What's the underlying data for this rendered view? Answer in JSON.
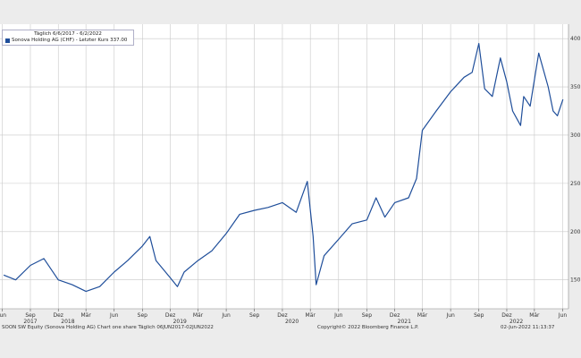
{
  "legend": {
    "title": "Täglich 6/6/2017 - 6/2/2022",
    "entry": "Sonova Holding AG (CHF) - Letzter Kurs 337.00"
  },
  "footer": {
    "left": "SOON SW Equity (Sonova Holding AG) Chart one share  Täglich 06JUN2017-02JUN2022",
    "center": "Copyright© 2022 Bloomberg Finance L.P.",
    "right": "02-Jun-2022 11:13:37"
  },
  "colors": {
    "line": "#1f4e9a",
    "grid": "#c8c8c8",
    "background": "#ffffff"
  },
  "chart_data": {
    "type": "line",
    "series": [
      {
        "name": "Sonova Holding AG (CHF) - Letzter Kurs 337.00",
        "x": [
          "2017-06-06",
          "2017-07-15",
          "2017-09-01",
          "2017-10-15",
          "2017-12-01",
          "2018-01-15",
          "2018-03-01",
          "2018-04-15",
          "2018-06-01",
          "2018-07-15",
          "2018-09-01",
          "2018-09-25",
          "2018-10-15",
          "2018-12-01",
          "2018-12-24",
          "2019-01-15",
          "2019-03-01",
          "2019-04-15",
          "2019-06-01",
          "2019-07-15",
          "2019-09-01",
          "2019-10-15",
          "2019-12-01",
          "2020-01-15",
          "2020-02-20",
          "2020-03-10",
          "2020-03-20",
          "2020-04-15",
          "2020-06-01",
          "2020-07-15",
          "2020-09-01",
          "2020-10-01",
          "2020-10-30",
          "2020-12-01",
          "2021-01-15",
          "2021-02-10",
          "2021-03-01",
          "2021-04-15",
          "2021-06-01",
          "2021-07-15",
          "2021-08-10",
          "2021-09-01",
          "2021-09-20",
          "2021-10-15",
          "2021-11-10",
          "2021-12-01",
          "2021-12-20",
          "2022-01-15",
          "2022-01-25",
          "2022-02-15",
          "2022-03-15",
          "2022-04-15",
          "2022-05-01",
          "2022-05-15",
          "2022-06-02"
        ],
        "y": [
          155,
          150,
          165,
          172,
          150,
          145,
          138,
          143,
          158,
          170,
          185,
          195,
          170,
          152,
          143,
          158,
          170,
          180,
          198,
          218,
          222,
          225,
          230,
          220,
          252,
          195,
          145,
          175,
          192,
          208,
          212,
          235,
          215,
          230,
          235,
          255,
          305,
          325,
          345,
          360,
          365,
          395,
          348,
          340,
          380,
          355,
          325,
          310,
          340,
          330,
          385,
          350,
          325,
          320,
          337
        ]
      }
    ],
    "x_tick_labels": [
      {
        "x": "2017-06-01",
        "label": "Jun"
      },
      {
        "x": "2017-09-01",
        "label": "Sep"
      },
      {
        "x": "2017-12-01",
        "label": "Dez"
      },
      {
        "x": "2018-03-01",
        "label": "Mär"
      },
      {
        "x": "2018-06-01",
        "label": "Jun"
      },
      {
        "x": "2018-09-01",
        "label": "Sep"
      },
      {
        "x": "2018-12-01",
        "label": "Dez"
      },
      {
        "x": "2019-03-01",
        "label": "Mär"
      },
      {
        "x": "2019-06-01",
        "label": "Jun"
      },
      {
        "x": "2019-09-01",
        "label": "Sep"
      },
      {
        "x": "2019-12-01",
        "label": "Dez"
      },
      {
        "x": "2020-03-01",
        "label": "Mär"
      },
      {
        "x": "2020-06-01",
        "label": "Jun"
      },
      {
        "x": "2020-09-01",
        "label": "Sep"
      },
      {
        "x": "2020-12-01",
        "label": "Dez"
      },
      {
        "x": "2021-03-01",
        "label": "Mär"
      },
      {
        "x": "2021-06-01",
        "label": "Jun"
      },
      {
        "x": "2021-09-01",
        "label": "Sep"
      },
      {
        "x": "2021-12-01",
        "label": "Dez"
      },
      {
        "x": "2022-03-01",
        "label": "Mär"
      },
      {
        "x": "2022-06-01",
        "label": "Jun"
      }
    ],
    "year_labels": [
      {
        "x": "2017-09-01",
        "label": "2017"
      },
      {
        "x": "2018-01-01",
        "label": "2018"
      },
      {
        "x": "2019-01-01",
        "label": "2019"
      },
      {
        "x": "2020-01-01",
        "label": "2020"
      },
      {
        "x": "2021-01-01",
        "label": "2021"
      },
      {
        "x": "2022-01-01",
        "label": "2022"
      }
    ],
    "y_ticks": [
      150,
      200,
      250,
      300,
      350,
      400
    ],
    "xlim": [
      "2017-05-25",
      "2022-06-20"
    ],
    "ylim": [
      120,
      415
    ],
    "grid": true,
    "legend_position": "top-left",
    "y_axis_position": "right"
  }
}
